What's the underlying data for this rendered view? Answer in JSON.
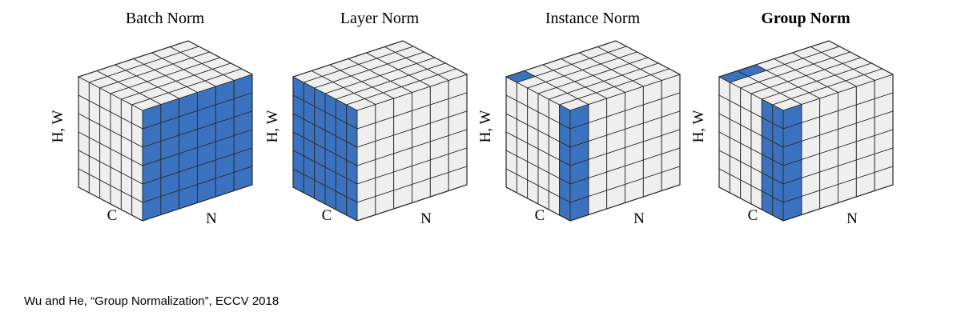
{
  "panels": [
    {
      "id": "batch-norm",
      "title": "Batch Norm",
      "bold": false,
      "axis_hw": "H, W",
      "axis_c": "C",
      "axis_n": "N",
      "highlight": "batch"
    },
    {
      "id": "layer-norm",
      "title": "Layer Norm",
      "bold": false,
      "axis_hw": "H, W",
      "axis_c": "C",
      "axis_n": "N",
      "highlight": "layer"
    },
    {
      "id": "instance-norm",
      "title": "Instance Norm",
      "bold": false,
      "axis_hw": "H, W",
      "axis_c": "C",
      "axis_n": "N",
      "highlight": "instance"
    },
    {
      "id": "group-norm",
      "title": "Group Norm",
      "bold": true,
      "axis_hw": "H, W",
      "axis_c": "C",
      "axis_n": "N",
      "highlight": "group"
    }
  ],
  "colors": {
    "highlight_fill": "#3b72c0",
    "cell_fill": "#efefef",
    "grid_stroke": "#2a2a2a"
  },
  "citation": "Wu and He, “Group Normalization”, ECCV 2018"
}
